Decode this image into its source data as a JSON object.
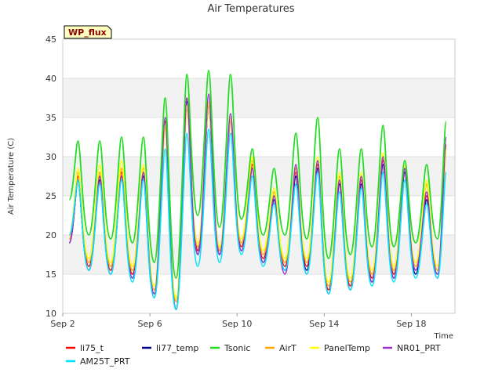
{
  "chart_data": {
    "type": "line",
    "title": "Air Temperatures",
    "xlabel": "Time",
    "ylabel": "Air Temperature (C)",
    "badge": "WP_flux",
    "xlim": [
      "Sep 2",
      "Sep 20"
    ],
    "ylim": [
      10,
      45
    ],
    "y_ticks": [
      10,
      15,
      20,
      25,
      30,
      35,
      40,
      45
    ],
    "x_ticks": [
      "Sep 2",
      "Sep 6",
      "Sep 10",
      "Sep 14",
      "Sep 18"
    ],
    "x_tick_values": [
      2,
      6,
      10,
      14,
      18
    ],
    "x_day_range": [
      2,
      20
    ],
    "grid": true,
    "legend_position": "bottom",
    "days": [
      2.3,
      2.7,
      3.2,
      3.7,
      4.2,
      4.7,
      5.2,
      5.7,
      6.2,
      6.7,
      7.2,
      7.7,
      8.2,
      8.7,
      9.2,
      9.7,
      10.2,
      10.7,
      11.2,
      11.7,
      12.2,
      12.7,
      13.2,
      13.7,
      14.2,
      14.7,
      15.2,
      15.7,
      16.2,
      16.7,
      17.2,
      17.7,
      18.2,
      18.7,
      19.2,
      19.6
    ],
    "series": [
      {
        "name": "li75_t",
        "color": "#ff0000",
        "values": [
          19.0,
          27.5,
          16.0,
          27.5,
          15.5,
          28.0,
          15.0,
          28.0,
          12.5,
          34.5,
          10.5,
          37.5,
          18.0,
          37.0,
          18.0,
          35.0,
          18.5,
          29.0,
          17.0,
          25.0,
          16.0,
          28.0,
          16.0,
          29.0,
          13.0,
          27.0,
          13.5,
          27.0,
          14.5,
          29.5,
          15.0,
          28.5,
          15.5,
          25.0,
          15.0,
          31.5
        ]
      },
      {
        "name": "li77_temp",
        "color": "#00008b",
        "values": [
          19.0,
          27.0,
          15.5,
          27.0,
          15.0,
          27.5,
          14.5,
          27.5,
          12.0,
          34.0,
          10.5,
          37.0,
          17.5,
          36.5,
          17.5,
          34.5,
          18.0,
          28.5,
          16.5,
          24.5,
          15.5,
          27.5,
          15.5,
          28.5,
          12.5,
          26.5,
          13.0,
          26.5,
          14.0,
          29.0,
          14.5,
          28.0,
          15.0,
          24.5,
          14.5,
          31.0
        ]
      },
      {
        "name": "Tsonic",
        "color": "#22dd22",
        "values": [
          24.5,
          32.0,
          20.0,
          32.0,
          19.5,
          32.5,
          19.0,
          32.5,
          16.5,
          37.5,
          14.5,
          40.5,
          22.5,
          41.0,
          21.0,
          40.5,
          22.0,
          31.0,
          20.0,
          28.5,
          20.0,
          33.0,
          19.5,
          35.0,
          17.0,
          31.0,
          17.5,
          31.0,
          18.5,
          34.0,
          18.5,
          29.5,
          19.0,
          29.0,
          19.5,
          34.5
        ]
      },
      {
        "name": "AirT",
        "color": "#ffa500",
        "values": [
          19.5,
          28.0,
          16.5,
          28.0,
          16.0,
          28.5,
          15.5,
          28.5,
          13.0,
          33.5,
          11.5,
          36.0,
          18.5,
          36.5,
          18.0,
          34.5,
          19.0,
          29.5,
          17.5,
          25.5,
          16.5,
          28.5,
          16.5,
          29.5,
          13.5,
          27.5,
          14.0,
          27.5,
          15.0,
          30.0,
          15.5,
          28.5,
          16.0,
          26.5,
          15.5,
          30.5
        ]
      },
      {
        "name": "PanelTemp",
        "color": "#ffff00",
        "values": [
          20.0,
          28.5,
          17.0,
          29.0,
          16.5,
          29.5,
          16.0,
          29.0,
          13.5,
          34.0,
          12.0,
          36.5,
          19.0,
          37.0,
          18.5,
          35.0,
          19.5,
          30.0,
          18.0,
          26.0,
          17.0,
          29.0,
          17.0,
          30.0,
          14.0,
          28.0,
          14.5,
          28.0,
          15.5,
          30.5,
          16.0,
          29.0,
          16.5,
          27.0,
          16.0,
          31.0
        ]
      },
      {
        "name": "NR01_PRT",
        "color": "#9933cc",
        "values": [
          19.0,
          27.0,
          15.5,
          27.5,
          15.0,
          27.5,
          14.5,
          28.0,
          12.5,
          35.0,
          10.5,
          37.5,
          17.5,
          38.0,
          17.5,
          35.5,
          18.0,
          28.5,
          16.5,
          25.0,
          15.0,
          29.0,
          15.0,
          29.5,
          12.5,
          27.0,
          13.0,
          27.5,
          14.0,
          30.0,
          14.5,
          28.5,
          15.5,
          25.5,
          15.0,
          32.5
        ]
      },
      {
        "name": "AM25T_PRT",
        "color": "#00e5ff",
        "values": [
          20.0,
          27.0,
          15.5,
          26.5,
          15.0,
          27.0,
          14.0,
          27.0,
          12.0,
          31.0,
          10.5,
          33.0,
          16.0,
          33.5,
          16.5,
          33.0,
          17.5,
          27.5,
          16.0,
          24.0,
          15.5,
          26.5,
          15.0,
          28.0,
          12.5,
          25.5,
          13.0,
          26.0,
          13.5,
          28.0,
          14.0,
          27.0,
          14.5,
          24.0,
          14.5,
          28.0
        ]
      }
    ]
  }
}
